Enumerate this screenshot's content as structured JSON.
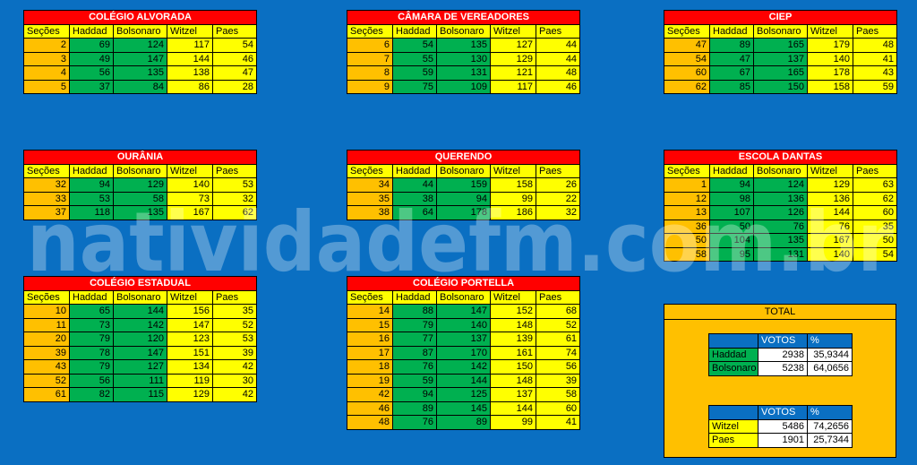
{
  "watermark": "natividadefm.com.br",
  "columns": [
    "Seções",
    "Haddad",
    "Bolsonaro",
    "Witzel",
    "Paes"
  ],
  "tables": [
    {
      "title": "COLÉGIO ALVORADA",
      "rows": [
        [
          2,
          69,
          124,
          117,
          54
        ],
        [
          3,
          49,
          147,
          144,
          46
        ],
        [
          4,
          56,
          135,
          138,
          47
        ],
        [
          5,
          37,
          84,
          86,
          28
        ]
      ]
    },
    {
      "title": "CÂMARA DE VEREADORES",
      "rows": [
        [
          6,
          54,
          135,
          127,
          44
        ],
        [
          7,
          55,
          130,
          129,
          44
        ],
        [
          8,
          59,
          131,
          121,
          48
        ],
        [
          9,
          75,
          109,
          117,
          46
        ]
      ]
    },
    {
      "title": "CIEP",
      "rows": [
        [
          47,
          89,
          165,
          179,
          48
        ],
        [
          54,
          47,
          137,
          140,
          41
        ],
        [
          60,
          67,
          165,
          178,
          43
        ],
        [
          62,
          85,
          150,
          158,
          59
        ]
      ]
    },
    {
      "title": "OURÂNIA",
      "rows": [
        [
          32,
          94,
          129,
          140,
          53
        ],
        [
          33,
          53,
          58,
          73,
          32
        ],
        [
          37,
          118,
          135,
          167,
          62
        ]
      ]
    },
    {
      "title": "QUERENDO",
      "rows": [
        [
          34,
          44,
          159,
          158,
          26
        ],
        [
          35,
          38,
          94,
          99,
          22
        ],
        [
          38,
          64,
          178,
          186,
          32
        ]
      ]
    },
    {
      "title": "ESCOLA DANTAS",
      "rows": [
        [
          1,
          94,
          124,
          129,
          63
        ],
        [
          12,
          98,
          136,
          136,
          62
        ],
        [
          13,
          107,
          126,
          144,
          60
        ],
        [
          36,
          50,
          76,
          76,
          35
        ],
        [
          50,
          104,
          135,
          167,
          50
        ],
        [
          58,
          95,
          131,
          140,
          54
        ]
      ]
    },
    {
      "title": "COLÉGIO ESTADUAL",
      "rows": [
        [
          10,
          65,
          144,
          156,
          35
        ],
        [
          11,
          73,
          142,
          147,
          52
        ],
        [
          20,
          79,
          120,
          123,
          53
        ],
        [
          39,
          78,
          147,
          151,
          39
        ],
        [
          43,
          79,
          127,
          134,
          42
        ],
        [
          52,
          56,
          111,
          119,
          30
        ],
        [
          61,
          82,
          115,
          129,
          42
        ]
      ]
    },
    {
      "title": "COLÉGIO PORTELLA",
      "rows": [
        [
          14,
          88,
          147,
          152,
          68
        ],
        [
          15,
          79,
          140,
          148,
          52
        ],
        [
          16,
          77,
          137,
          139,
          61
        ],
        [
          17,
          87,
          170,
          161,
          74
        ],
        [
          18,
          76,
          142,
          150,
          56
        ],
        [
          19,
          59,
          144,
          148,
          39
        ],
        [
          42,
          94,
          125,
          137,
          58
        ],
        [
          46,
          89,
          145,
          144,
          60
        ],
        [
          48,
          76,
          89,
          99,
          41
        ]
      ]
    }
  ],
  "total": {
    "title": "TOTAL",
    "tables": [
      {
        "columns": [
          "VOTOS",
          "%"
        ],
        "rows": [
          [
            "Haddad",
            2938,
            "35,9344"
          ],
          [
            "Bolsonaro",
            5238,
            "64,0656"
          ]
        ]
      },
      {
        "columns": [
          "VOTOS",
          "%"
        ],
        "rows": [
          [
            "Witzel",
            5486,
            "74,2656"
          ],
          [
            "Paes",
            1901,
            "25,7344"
          ]
        ]
      }
    ]
  }
}
